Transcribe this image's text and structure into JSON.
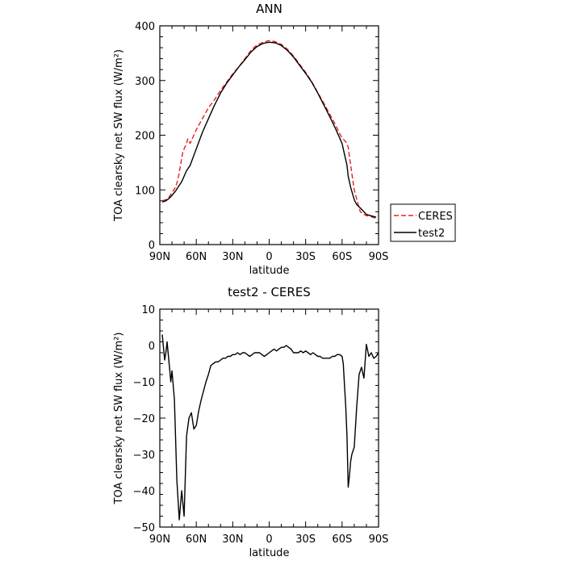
{
  "chart_data": [
    {
      "type": "line",
      "title": "ANN",
      "xlabel": "latitude",
      "ylabel": "TOA clearsky net SW flux (W/m²)",
      "xlim": [
        -90,
        90
      ],
      "ylim": [
        0,
        400
      ],
      "x_ticks": [
        -90,
        -60,
        -30,
        0,
        30,
        60,
        90
      ],
      "x_tick_labels": [
        "90N",
        "60N",
        "30N",
        "0",
        "30S",
        "60S",
        "90S"
      ],
      "y_ticks": [
        0,
        100,
        200,
        300,
        400
      ],
      "y_tick_labels": [
        "0",
        "100",
        "200",
        "300",
        "400"
      ],
      "grid": false,
      "legend": "outside-right",
      "series": [
        {
          "name": "CERES",
          "color": "#e8201e",
          "style": "dashed",
          "x": [
            -88,
            -85,
            -82,
            -80,
            -77,
            -75,
            -73,
            -71,
            -70,
            -68,
            -67,
            -65,
            -60,
            -55,
            -50,
            -45,
            -40,
            -35,
            -30,
            -25,
            -20,
            -15,
            -10,
            -5,
            0,
            5,
            10,
            15,
            20,
            25,
            30,
            35,
            40,
            45,
            50,
            55,
            58,
            60,
            63,
            65,
            68,
            70,
            73,
            75,
            78,
            80,
            85,
            88
          ],
          "y": [
            80,
            82,
            88,
            95,
            105,
            120,
            145,
            170,
            175,
            185,
            193,
            185,
            210,
            230,
            250,
            265,
            282,
            297,
            312,
            325,
            340,
            355,
            365,
            370,
            373,
            371,
            366,
            357,
            345,
            330,
            315,
            298,
            278,
            258,
            238,
            217,
            203,
            195,
            188,
            178,
            130,
            100,
            75,
            60,
            55,
            53,
            50,
            48
          ]
        },
        {
          "name": "test2",
          "color": "#000000",
          "style": "solid",
          "x": [
            -88,
            -85,
            -82,
            -80,
            -77,
            -75,
            -72,
            -70,
            -68,
            -65,
            -60,
            -55,
            -50,
            -45,
            -40,
            -35,
            -30,
            -25,
            -20,
            -15,
            -10,
            -5,
            0,
            5,
            10,
            15,
            20,
            25,
            30,
            35,
            40,
            45,
            50,
            55,
            60,
            62,
            64,
            65,
            67,
            70,
            72,
            75,
            78,
            80,
            85,
            88
          ],
          "y": [
            78,
            80,
            85,
            90,
            98,
            105,
            115,
            125,
            135,
            145,
            175,
            205,
            230,
            255,
            277,
            295,
            310,
            325,
            338,
            352,
            362,
            368,
            370,
            369,
            364,
            355,
            343,
            328,
            313,
            297,
            277,
            255,
            233,
            210,
            185,
            165,
            145,
            125,
            105,
            82,
            73,
            67,
            60,
            55,
            52,
            50
          ]
        }
      ]
    },
    {
      "type": "line",
      "title": "test2 - CERES",
      "xlabel": "latitude",
      "ylabel": "TOA clearsky net SW flux (W/m²)",
      "xlim": [
        -90,
        90
      ],
      "ylim": [
        -50,
        10
      ],
      "x_ticks": [
        -90,
        -60,
        -30,
        0,
        30,
        60,
        90
      ],
      "x_tick_labels": [
        "90N",
        "60N",
        "30N",
        "0",
        "30S",
        "60S",
        "90S"
      ],
      "y_ticks": [
        -50,
        -40,
        -30,
        -20,
        -10,
        0,
        10
      ],
      "y_tick_labels": [
        "−50",
        "−40",
        "−30",
        "−20",
        "−10",
        "0",
        "10"
      ],
      "grid": false,
      "series": [
        {
          "color": "#000000",
          "style": "solid",
          "x": [
            -88,
            -86,
            -85,
            -84,
            -82,
            -81,
            -80,
            -78,
            -76,
            -74,
            -72,
            -70,
            -68,
            -66,
            -64,
            -62,
            -60,
            -58,
            -56,
            -54,
            -52,
            -50,
            -48,
            -46,
            -44,
            -42,
            -40,
            -38,
            -36,
            -34,
            -32,
            -30,
            -28,
            -26,
            -24,
            -22,
            -20,
            -18,
            -16,
            -14,
            -12,
            -10,
            -8,
            -6,
            -4,
            -2,
            0,
            2,
            4,
            6,
            8,
            10,
            12,
            14,
            16,
            18,
            20,
            22,
            24,
            26,
            28,
            30,
            32,
            34,
            36,
            38,
            40,
            42,
            44,
            46,
            48,
            50,
            52,
            54,
            56,
            58,
            60,
            61,
            62,
            63,
            64,
            65,
            66,
            67,
            68,
            70,
            72,
            74,
            76,
            78,
            80,
            82,
            84,
            86,
            88,
            90
          ],
          "y": [
            3,
            -4,
            -2,
            1,
            -6,
            -10,
            -7,
            -15,
            -37,
            -48,
            -40,
            -47,
            -25,
            -20,
            -18.5,
            -23,
            -22,
            -18,
            -15,
            -12.5,
            -10,
            -8,
            -5.5,
            -5,
            -4.5,
            -4.5,
            -4,
            -3.5,
            -3.5,
            -3,
            -3,
            -2.5,
            -2.5,
            -2,
            -2.5,
            -2,
            -2,
            -2.5,
            -3,
            -2.5,
            -2,
            -2,
            -2,
            -2.5,
            -3,
            -2.5,
            -2,
            -1.5,
            -1,
            -1.5,
            -1,
            -0.5,
            -0.5,
            0,
            -0.5,
            -1,
            -2,
            -2,
            -2,
            -1.5,
            -2,
            -1.5,
            -2,
            -2.5,
            -2,
            -2.5,
            -3,
            -3,
            -3.5,
            -3.5,
            -3.5,
            -3.5,
            -3,
            -3,
            -2.5,
            -2.5,
            -3,
            -5,
            -11,
            -17,
            -25,
            -39,
            -36,
            -32,
            -30,
            -28,
            -17,
            -8,
            -6,
            -9,
            0.3,
            -3,
            -2,
            -3.5,
            -3,
            -2
          ]
        }
      ]
    }
  ]
}
